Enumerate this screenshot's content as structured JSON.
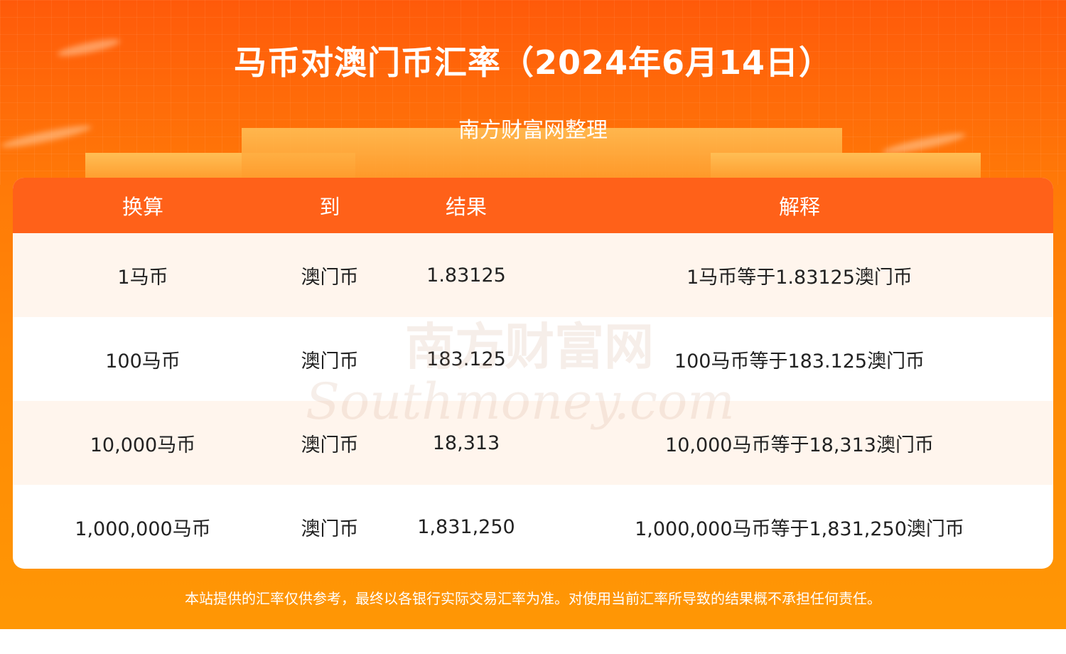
{
  "header": {
    "title": "马币对澳门币汇率（2024年6月14日）",
    "subtitle": "南方财富网整理"
  },
  "table": {
    "columns": [
      "换算",
      "到",
      "结果",
      "解释"
    ],
    "rows": [
      [
        "1马币",
        "澳门币",
        "1.83125",
        "1马币等于1.83125澳门币"
      ],
      [
        "100马币",
        "澳门币",
        "183.125",
        "100马币等于183.125澳门币"
      ],
      [
        "10,000马币",
        "澳门币",
        "18,313",
        "10,000马币等于18,313澳门币"
      ],
      [
        "1,000,000马币",
        "澳门币",
        "1,831,250",
        "1,000,000马币等于1,831,250澳门币"
      ]
    ]
  },
  "watermark": {
    "cn": "南方财富网",
    "en": "Southmoney.com"
  },
  "footer": {
    "disclaimer": "本站提供的汇率仅供参考，最终以各银行实际交易汇率为准。对使用当前汇率所导致的结果概不承担任何责任。"
  },
  "colors": {
    "header_row": "#ff6119",
    "odd_row": "#fff5ed",
    "background_top": "#ff5a0a",
    "background_bottom": "#ff9705"
  }
}
